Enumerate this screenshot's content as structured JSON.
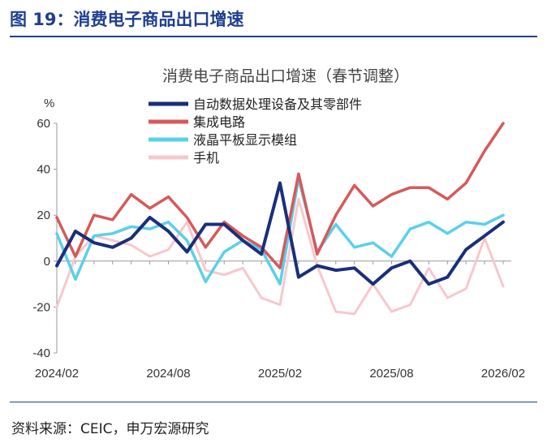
{
  "figure_title": "图 19：消费电子商品出口增速",
  "source": "资料来源：CEIC，申万宏源研究",
  "chart_data": {
    "type": "line",
    "title": "消费电子商品出口增速（春节调整）",
    "ylabel": "%",
    "ylim": [
      -40,
      60
    ],
    "yticks": [
      -40,
      -20,
      0,
      20,
      40,
      60
    ],
    "x": [
      "2024/02",
      "2024/03",
      "2024/04",
      "2024/05",
      "2024/06",
      "2024/07",
      "2024/08",
      "2024/09",
      "2024/10",
      "2024/11",
      "2024/12",
      "2025/01",
      "2025/02",
      "2025/03",
      "2025/04",
      "2025/05",
      "2025/06",
      "2025/07",
      "2025/08",
      "2025/09",
      "2025/10",
      "2025/11",
      "2025/12",
      "2026/01",
      "2026/02"
    ],
    "xtick_labels": [
      "2024/02",
      "2024/08",
      "2025/02",
      "2025/08",
      "2026/02"
    ],
    "legend_position": "top-right",
    "series": [
      {
        "name": "自动数据处理设备及其零部件",
        "color": "#1a2f7a",
        "values": [
          -2,
          13,
          8,
          6,
          10,
          19,
          13,
          4,
          16,
          16,
          9,
          3,
          34,
          -7,
          -2,
          -4,
          -3,
          -10,
          -3,
          0,
          -10,
          -7,
          5,
          11,
          17
        ]
      },
      {
        "name": "集成电路",
        "color": "#d65a5a",
        "values": [
          19,
          2,
          20,
          18,
          29,
          23,
          28,
          19,
          6,
          17,
          11,
          6,
          -3,
          38,
          3,
          20,
          33,
          24,
          29,
          32,
          32,
          27,
          34,
          48,
          60
        ]
      },
      {
        "name": "液晶平板显示模组",
        "color": "#5bd0ea",
        "values": [
          12,
          -8,
          11,
          12,
          15,
          14,
          17,
          9,
          -9,
          4,
          9,
          5,
          -10,
          36,
          4,
          16,
          6,
          8,
          2,
          14,
          17,
          12,
          17,
          16,
          20
        ]
      },
      {
        "name": "手机",
        "color": "#f6c8cc",
        "values": [
          -20,
          2,
          11,
          9,
          7,
          2,
          5,
          17,
          -4,
          -6,
          -3,
          -16,
          -19,
          27,
          -2,
          -22,
          -23,
          -10,
          -22,
          -19,
          -3,
          -16,
          -12,
          10,
          -11
        ]
      }
    ]
  }
}
